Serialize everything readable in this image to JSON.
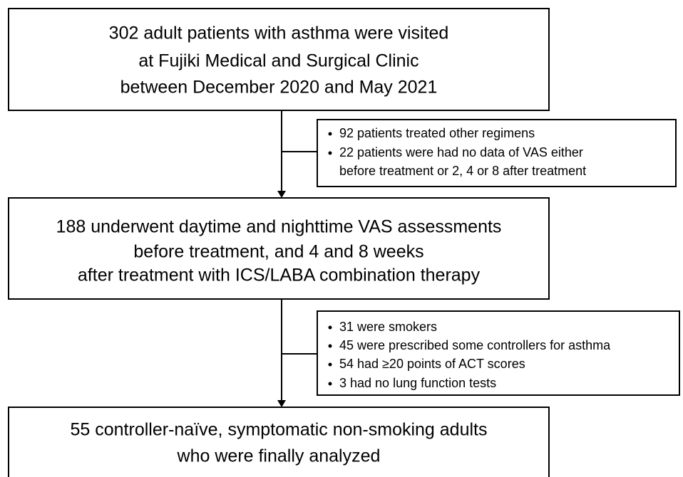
{
  "boxes": [
    {
      "lines": [
        "302 adult patients with asthma were visited",
        "at Fujiki Medical and Surgical Clinic",
        "between December 2020 and May 2021"
      ]
    },
    {
      "lines": [
        "188 underwent daytime and nighttime VAS assessments",
        "before treatment, and 4 and 8 weeks",
        "after treatment with ICS/LABA combination therapy"
      ]
    },
    {
      "lines": [
        "55 controller-naïve, symptomatic non-smoking adults",
        "who were finally analyzed"
      ]
    }
  ],
  "exclusions": [
    {
      "items": [
        "92 patients treated other regimens",
        "22 patients were had no data of VAS either",
        "before treatment or 2, 4 or 8 after treatment"
      ]
    },
    {
      "items": [
        "31 were smokers",
        "45 were prescribed some controllers for asthma",
        "54 had ≥20 points of ACT scores",
        "3 had no lung function tests"
      ]
    }
  ]
}
